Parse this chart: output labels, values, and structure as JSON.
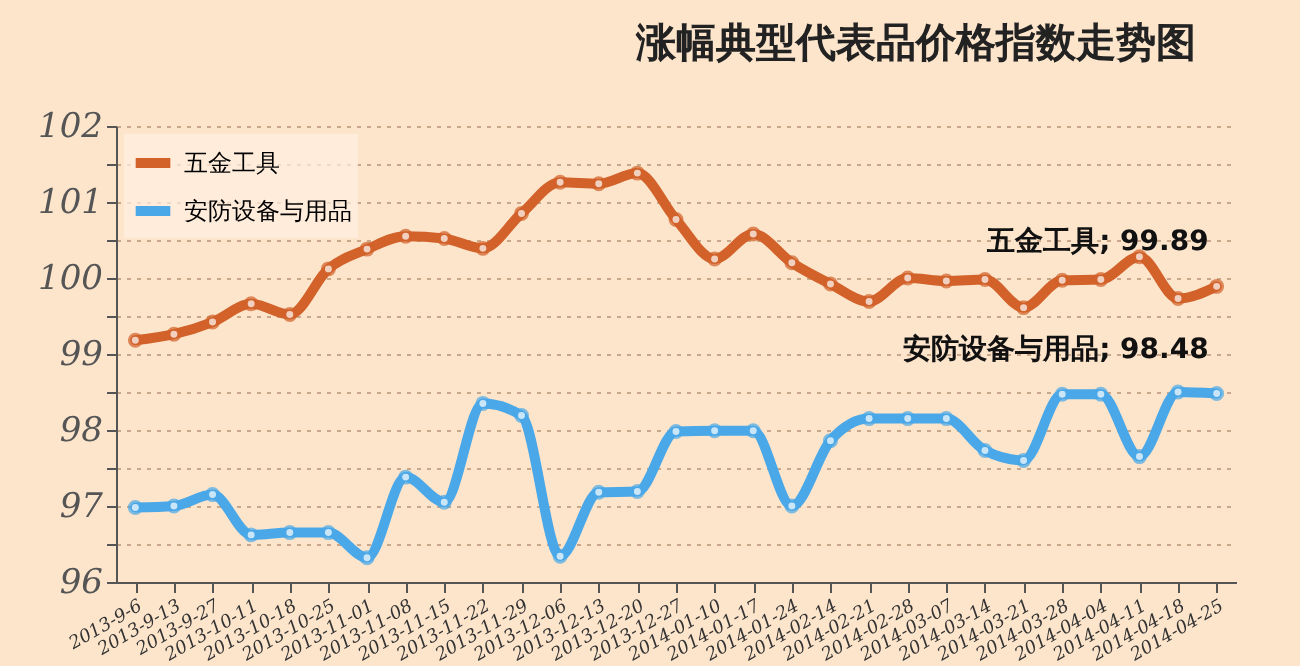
{
  "chart_data": {
    "type": "line",
    "title": "涨幅典型代表品价格指数走势图",
    "categories": [
      "2013-9-6",
      "2013-9-13",
      "2013-9-27",
      "2013-10-11",
      "2013-10-18",
      "2013-10-25",
      "2013-11-01",
      "2013-11-08",
      "2013-11-15",
      "2013-11-22",
      "2013-11-29",
      "2013-12-06",
      "2013-12-13",
      "2013-12-20",
      "2013-12-27",
      "2014-01-10",
      "2014-01-17",
      "2014-01-24",
      "2014-02-14",
      "2014-02-21",
      "2014-02-28",
      "2014-03-07",
      "2014-03-14",
      "2014-03-21",
      "2014-03-28",
      "2014-04-04",
      "2014-04-11",
      "2014-04-18",
      "2014-04-25"
    ],
    "series": [
      {
        "name": "五金工具",
        "color": "#d2622a",
        "values": [
          99.18,
          99.26,
          99.42,
          99.66,
          99.52,
          100.12,
          100.38,
          100.55,
          100.52,
          100.39,
          100.85,
          101.26,
          101.24,
          101.38,
          100.77,
          100.25,
          100.58,
          100.2,
          99.92,
          99.69,
          100.0,
          99.96,
          99.98,
          99.61,
          99.97,
          99.98,
          100.28,
          99.73,
          99.89
        ]
      },
      {
        "name": "安防设备与用品",
        "color": "#4aa8e8",
        "values": [
          96.98,
          97.0,
          97.15,
          96.62,
          96.65,
          96.65,
          96.32,
          97.38,
          97.05,
          98.35,
          98.19,
          96.34,
          97.18,
          97.19,
          97.98,
          97.99,
          97.99,
          97.0,
          97.86,
          98.15,
          98.15,
          98.15,
          97.73,
          97.6,
          98.47,
          98.47,
          97.65,
          98.5,
          98.48
        ]
      }
    ],
    "ylim": [
      96,
      102
    ],
    "yticks": [
      96,
      {
        "value": 96.5,
        "label": null
      },
      97,
      {
        "value": 97.5,
        "label": null
      },
      98,
      {
        "value": 98.5,
        "label": null
      },
      99,
      {
        "value": 99.5,
        "label": null
      },
      100,
      {
        "value": 100.5,
        "label": null
      },
      101,
      {
        "value": 101.5,
        "label": null
      },
      102
    ],
    "grid": "y",
    "legend": "top left",
    "marker": "circle",
    "line_style": "solid",
    "annotations": [
      {
        "text": "五金工具; 99.89",
        "x": "2014-04-25",
        "y": 99.89
      },
      {
        "text": "安防设备与用品; 98.48",
        "x": "2014-04-25",
        "y": 98.48
      }
    ]
  }
}
